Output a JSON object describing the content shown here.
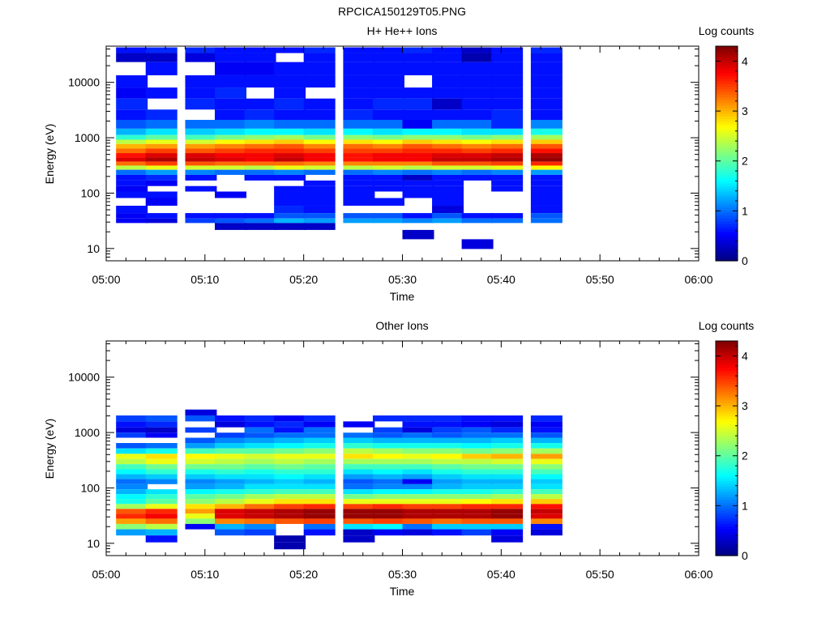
{
  "figure": {
    "title": "RPCICA150129T05.PNG"
  },
  "colorscale": [
    "#00007f",
    "#0000ff",
    "#0080ff",
    "#00ffff",
    "#80ff80",
    "#ffff00",
    "#ff8000",
    "#ff0000",
    "#7f0000"
  ],
  "chart_data": [
    {
      "type": "heatmap",
      "title": "H+ He++ Ions",
      "xlabel": "Time",
      "ylabel": "Energy (eV)",
      "colorbar_label": "Log counts",
      "colorbar_ticks": [
        "0",
        "1",
        "2",
        "3",
        "4"
      ],
      "clim": [
        0,
        4.3
      ],
      "yscale": "log",
      "ylim": [
        6,
        45000
      ],
      "xlim": [
        "05:00",
        "06:00"
      ],
      "x_ticks": [
        "05:00",
        "05:10",
        "05:20",
        "05:30",
        "05:40",
        "05:50",
        "06:00"
      ],
      "y_ticks": [
        {
          "value": 10,
          "label": "10"
        },
        {
          "value": 100,
          "label": "100"
        },
        {
          "value": 1000,
          "label": "1000"
        },
        {
          "value": 10000,
          "label": "10000"
        }
      ],
      "time_bins": [
        "05:01",
        "05:04",
        "05:08",
        "05:11",
        "05:14",
        "05:17",
        "05:20",
        "05:24",
        "05:27",
        "05:30",
        "05:33",
        "05:36",
        "05:39",
        "05:43"
      ],
      "time_bin_width_min": 3.2,
      "energy_bins_eV": [
        38000,
        30000,
        18000,
        10000,
        6500,
        4000,
        2600,
        1700,
        1250,
        1000,
        850,
        700,
        580,
        480,
        400,
        340,
        290,
        240,
        190,
        150,
        120,
        95,
        70,
        50,
        38,
        32,
        26,
        18,
        12
      ],
      "counts_log": [
        [
          0.6,
          0.3,
          0.0,
          0.6,
          0.5,
          0.7,
          0.6,
          0.9,
          1.3,
          1.8,
          2.4,
          3.0,
          3.3,
          3.7,
          3.9,
          3.3,
          2.4,
          1.0,
          0.6,
          0.6,
          0.5,
          0.6,
          0.0,
          0.6,
          0.5,
          0.5,
          0.0,
          0.0,
          0.0
        ],
        [
          0.7,
          0.3,
          0.6,
          0.0,
          0.6,
          0.0,
          0.7,
          1.0,
          1.5,
          2.0,
          2.6,
          3.1,
          3.5,
          3.9,
          4.1,
          3.5,
          2.6,
          1.2,
          0.7,
          0.5,
          0.0,
          0.6,
          0.5,
          0.0,
          0.6,
          0.4,
          0.0,
          0.0,
          0.0
        ],
        [
          0.7,
          0.4,
          0.0,
          0.6,
          0.6,
          0.7,
          0.0,
          1.0,
          1.4,
          1.9,
          2.5,
          3.1,
          3.4,
          3.9,
          4.0,
          3.4,
          2.5,
          1.1,
          0.6,
          0.0,
          0.6,
          0.0,
          0.0,
          0.0,
          0.6,
          0.8,
          0.0,
          0.0,
          0.0
        ],
        [
          0.6,
          0.6,
          0.5,
          0.6,
          0.7,
          0.6,
          0.6,
          1.0,
          1.5,
          2.1,
          2.7,
          3.2,
          3.5,
          3.8,
          3.9,
          3.3,
          2.5,
          1.0,
          0.0,
          0.0,
          0.0,
          0.5,
          0.0,
          0.0,
          0.6,
          0.9,
          0.3,
          0.0,
          0.0
        ],
        [
          0.6,
          0.6,
          0.5,
          0.6,
          0.0,
          0.6,
          0.7,
          1.1,
          1.6,
          2.2,
          2.8,
          3.3,
          3.6,
          3.8,
          3.8,
          3.3,
          2.4,
          1.0,
          0.6,
          0.0,
          0.0,
          0.0,
          0.0,
          0.0,
          0.6,
          1.0,
          0.3,
          0.0,
          0.0
        ],
        [
          0.6,
          0.0,
          0.6,
          0.6,
          0.6,
          0.7,
          0.6,
          1.0,
          1.6,
          2.3,
          2.9,
          3.4,
          3.6,
          3.9,
          4.0,
          3.3,
          2.6,
          1.1,
          0.6,
          0.0,
          0.6,
          0.6,
          0.6,
          0.7,
          0.9,
          1.3,
          0.3,
          0.0,
          0.0
        ],
        [
          0.7,
          0.6,
          0.6,
          0.6,
          0.0,
          0.6,
          0.6,
          1.0,
          1.5,
          2.1,
          2.7,
          3.2,
          3.5,
          3.8,
          3.8,
          3.2,
          2.5,
          1.0,
          0.0,
          0.6,
          0.6,
          0.6,
          0.6,
          0.6,
          0.9,
          1.2,
          0.3,
          0.0,
          0.0
        ],
        [
          0.6,
          0.6,
          0.6,
          0.6,
          0.6,
          0.6,
          0.7,
          1.0,
          1.6,
          2.2,
          2.8,
          3.3,
          3.5,
          3.7,
          3.7,
          3.2,
          2.4,
          1.0,
          0.6,
          0.6,
          0.6,
          0.6,
          0.6,
          0.0,
          0.9,
          1.2,
          0.0,
          0.0,
          0.0
        ],
        [
          0.6,
          0.6,
          0.6,
          0.6,
          0.6,
          0.7,
          0.6,
          1.0,
          1.5,
          2.1,
          2.7,
          3.2,
          3.5,
          3.8,
          3.8,
          3.2,
          2.5,
          1.1,
          0.6,
          0.6,
          0.6,
          0.0,
          0.6,
          0.0,
          0.9,
          1.2,
          0.0,
          0.0,
          0.0
        ],
        [
          0.7,
          0.6,
          0.6,
          0.0,
          0.6,
          0.7,
          0.6,
          0.5,
          1.6,
          2.2,
          2.9,
          3.4,
          3.6,
          3.8,
          3.8,
          3.2,
          2.4,
          1.0,
          0.3,
          0.6,
          0.6,
          0.6,
          0.0,
          0.0,
          0.6,
          1.1,
          0.0,
          0.3,
          0.0
        ],
        [
          0.6,
          0.6,
          0.6,
          0.6,
          0.6,
          0.3,
          0.6,
          1.0,
          1.6,
          2.2,
          2.8,
          3.3,
          3.6,
          3.9,
          4.0,
          3.4,
          2.5,
          1.1,
          0.6,
          0.6,
          0.6,
          0.6,
          0.6,
          0.4,
          0.9,
          1.2,
          0.0,
          0.0,
          0.0
        ],
        [
          0.3,
          0.2,
          0.6,
          0.6,
          0.6,
          0.6,
          0.6,
          1.0,
          1.5,
          2.1,
          2.7,
          3.2,
          3.5,
          3.9,
          4.0,
          3.4,
          2.5,
          1.0,
          0.6,
          0.0,
          0.0,
          0.0,
          0.0,
          0.0,
          0.6,
          1.0,
          0.0,
          0.0,
          0.4
        ],
        [
          0.6,
          0.6,
          0.6,
          0.6,
          0.6,
          0.6,
          0.7,
          0.7,
          1.5,
          2.2,
          2.8,
          3.3,
          3.6,
          4.0,
          4.1,
          3.5,
          2.6,
          1.1,
          0.6,
          0.6,
          0.6,
          0.0,
          0.0,
          0.0,
          0.6,
          1.0,
          0.0,
          0.0,
          0.0
        ],
        [
          0.7,
          0.6,
          0.6,
          0.6,
          0.6,
          0.6,
          0.6,
          1.1,
          1.7,
          2.3,
          2.9,
          3.4,
          3.7,
          4.1,
          4.2,
          3.6,
          2.7,
          1.2,
          0.6,
          0.6,
          0.6,
          0.6,
          0.6,
          0.6,
          0.9,
          1.0,
          0.0,
          0.0,
          0.0
        ]
      ]
    },
    {
      "type": "heatmap",
      "title": "Other Ions",
      "xlabel": "Time",
      "ylabel": "Energy (eV)",
      "colorbar_label": "Log counts",
      "colorbar_ticks": [
        "0",
        "1",
        "2",
        "3",
        "4"
      ],
      "clim": [
        0,
        4.3
      ],
      "yscale": "log",
      "ylim": [
        6,
        45000
      ],
      "xlim": [
        "05:00",
        "06:00"
      ],
      "x_ticks": [
        "05:00",
        "05:10",
        "05:20",
        "05:30",
        "05:40",
        "05:50",
        "06:00"
      ],
      "y_ticks": [
        {
          "value": 10,
          "label": "10"
        },
        {
          "value": 100,
          "label": "100"
        },
        {
          "value": 1000,
          "label": "1000"
        },
        {
          "value": 10000,
          "label": "10000"
        }
      ],
      "time_bins": [
        "05:01",
        "05:04",
        "05:08",
        "05:11",
        "05:14",
        "05:17",
        "05:20",
        "05:24",
        "05:27",
        "05:30",
        "05:33",
        "05:36",
        "05:39",
        "05:43"
      ],
      "time_bin_width_min": 3.2,
      "energy_bins_eV": [
        2300,
        1800,
        1400,
        1100,
        900,
        720,
        580,
        460,
        370,
        300,
        240,
        195,
        160,
        130,
        105,
        85,
        70,
        57,
        46,
        38,
        31,
        25,
        20,
        16,
        12,
        9
      ],
      "counts_log": [
        [
          0,
          0.8,
          0.6,
          0.4,
          0.8,
          0.0,
          0.9,
          1.5,
          2.6,
          2.4,
          1.9,
          1.6,
          1.3,
          1.0,
          1.1,
          1.3,
          1.6,
          1.7,
          2.3,
          3.4,
          3.6,
          3.1,
          2.2,
          1.2,
          0,
          0
        ],
        [
          0,
          0.9,
          0.7,
          0.3,
          0.5,
          0.0,
          1.0,
          1.7,
          2.8,
          2.6,
          2.1,
          1.8,
          1.4,
          1.1,
          0.0,
          1.5,
          1.8,
          2.0,
          2.6,
          3.6,
          3.8,
          3.3,
          2.4,
          1.3,
          0.6,
          0
        ],
        [
          0.4,
          0.9,
          0,
          0.8,
          0,
          0.9,
          1.2,
          1.9,
          2.7,
          2.5,
          2.1,
          1.7,
          1.4,
          1.1,
          1.2,
          1.6,
          2.0,
          2.2,
          2.8,
          3.1,
          2.6,
          2.2,
          0.5,
          0,
          0,
          0
        ],
        [
          0,
          0.6,
          0.4,
          0,
          0.8,
          1.1,
          1.4,
          2.0,
          2.6,
          2.4,
          2.1,
          1.8,
          1.5,
          1.2,
          1.3,
          1.7,
          2.1,
          2.4,
          3.0,
          3.9,
          3.9,
          3.2,
          1.3,
          0.9,
          0,
          0
        ],
        [
          0,
          0.7,
          0.6,
          1.0,
          0.9,
          1.2,
          1.5,
          2.0,
          2.5,
          2.3,
          2.0,
          1.7,
          1.5,
          1.3,
          1.5,
          1.8,
          2.3,
          2.6,
          3.3,
          4.0,
          4.0,
          3.3,
          1.1,
          0.8,
          0,
          0
        ],
        [
          0,
          0.5,
          0.7,
          0.6,
          1.0,
          1.3,
          1.6,
          2.1,
          2.6,
          2.4,
          2.1,
          1.8,
          1.6,
          1.4,
          1.5,
          1.9,
          2.4,
          2.8,
          3.5,
          4.1,
          4.1,
          3.4,
          0.0,
          0,
          0.2,
          0.2
        ],
        [
          0,
          0.7,
          0.5,
          1.0,
          1.0,
          1.4,
          1.7,
          2.2,
          2.6,
          2.3,
          2.0,
          1.8,
          1.5,
          1.3,
          1.5,
          1.9,
          2.4,
          2.8,
          3.6,
          4.2,
          4.2,
          3.5,
          1.0,
          0.6,
          0,
          0
        ],
        [
          0,
          0,
          0.5,
          0,
          1.0,
          1.4,
          1.8,
          2.4,
          2.8,
          2.3,
          1.9,
          1.5,
          1.2,
          0.9,
          1.0,
          1.5,
          2.1,
          2.6,
          3.5,
          4.2,
          4.2,
          3.4,
          1.5,
          0.3,
          0.3,
          0
        ],
        [
          0,
          0.7,
          0,
          0.8,
          0.9,
          1.3,
          1.7,
          2.3,
          2.7,
          2.3,
          1.9,
          1.6,
          1.3,
          1.0,
          1.1,
          1.6,
          2.2,
          2.6,
          3.6,
          4.2,
          4.2,
          3.5,
          1.6,
          0.5,
          0,
          0
        ],
        [
          0,
          0.7,
          0.6,
          0.4,
          1.0,
          1.3,
          1.7,
          2.2,
          2.6,
          2.3,
          1.9,
          1.5,
          1.2,
          0.5,
          1.1,
          1.6,
          2.2,
          2.6,
          3.5,
          4.1,
          4.1,
          3.4,
          1.0,
          0.4,
          0,
          0
        ],
        [
          0,
          0.7,
          0.6,
          0.8,
          0.9,
          1.3,
          1.7,
          2.2,
          2.7,
          2.4,
          2.0,
          1.7,
          1.4,
          1.2,
          1.3,
          1.7,
          2.2,
          2.6,
          3.5,
          4.1,
          4.1,
          3.3,
          1.4,
          0.6,
          0,
          0
        ],
        [
          0,
          0.6,
          0.5,
          0.9,
          1.0,
          1.3,
          1.6,
          2.1,
          2.9,
          2.4,
          2.1,
          1.8,
          1.5,
          1.3,
          1.4,
          1.7,
          2.2,
          2.7,
          3.6,
          4.1,
          4.1,
          3.4,
          1.4,
          0.8,
          0,
          0
        ],
        [
          0,
          0.6,
          0.4,
          0.7,
          1.0,
          1.4,
          1.7,
          2.2,
          3.0,
          2.5,
          2.1,
          1.8,
          1.5,
          1.3,
          1.4,
          1.8,
          2.3,
          2.8,
          3.6,
          4.2,
          4.2,
          3.4,
          1.4,
          0.5,
          0.4,
          0
        ],
        [
          0,
          0.7,
          0.5,
          0.6,
          0.9,
          1.3,
          1.7,
          2.3,
          3.1,
          2.6,
          2.2,
          1.9,
          1.6,
          1.4,
          1.5,
          1.9,
          2.4,
          2.9,
          3.7,
          4.0,
          3.9,
          3.2,
          0.6,
          0.4,
          0,
          0
        ]
      ]
    }
  ]
}
